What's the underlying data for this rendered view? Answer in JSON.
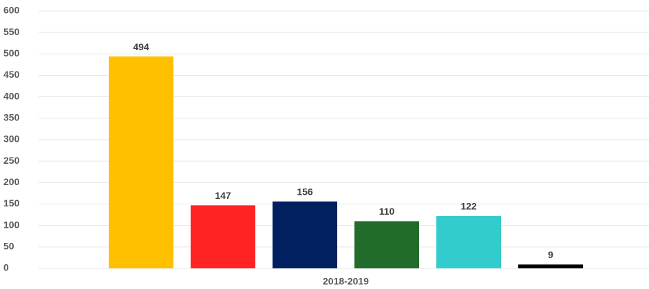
{
  "chart_data": {
    "type": "bar",
    "categories": [
      "2018-2019"
    ],
    "series": [
      {
        "color": "#ffc000",
        "values": [
          494
        ]
      },
      {
        "color": "#ff2323",
        "values": [
          147
        ]
      },
      {
        "color": "#002060",
        "values": [
          156
        ]
      },
      {
        "color": "#236b2b",
        "values": [
          110
        ]
      },
      {
        "color": "#33cccc",
        "values": [
          122
        ]
      },
      {
        "color": "#000000",
        "values": [
          9
        ]
      }
    ],
    "ylim": [
      0,
      600
    ],
    "yticks": [
      0,
      50,
      100,
      150,
      200,
      250,
      300,
      350,
      400,
      450,
      500,
      550,
      600
    ],
    "grid": true
  }
}
